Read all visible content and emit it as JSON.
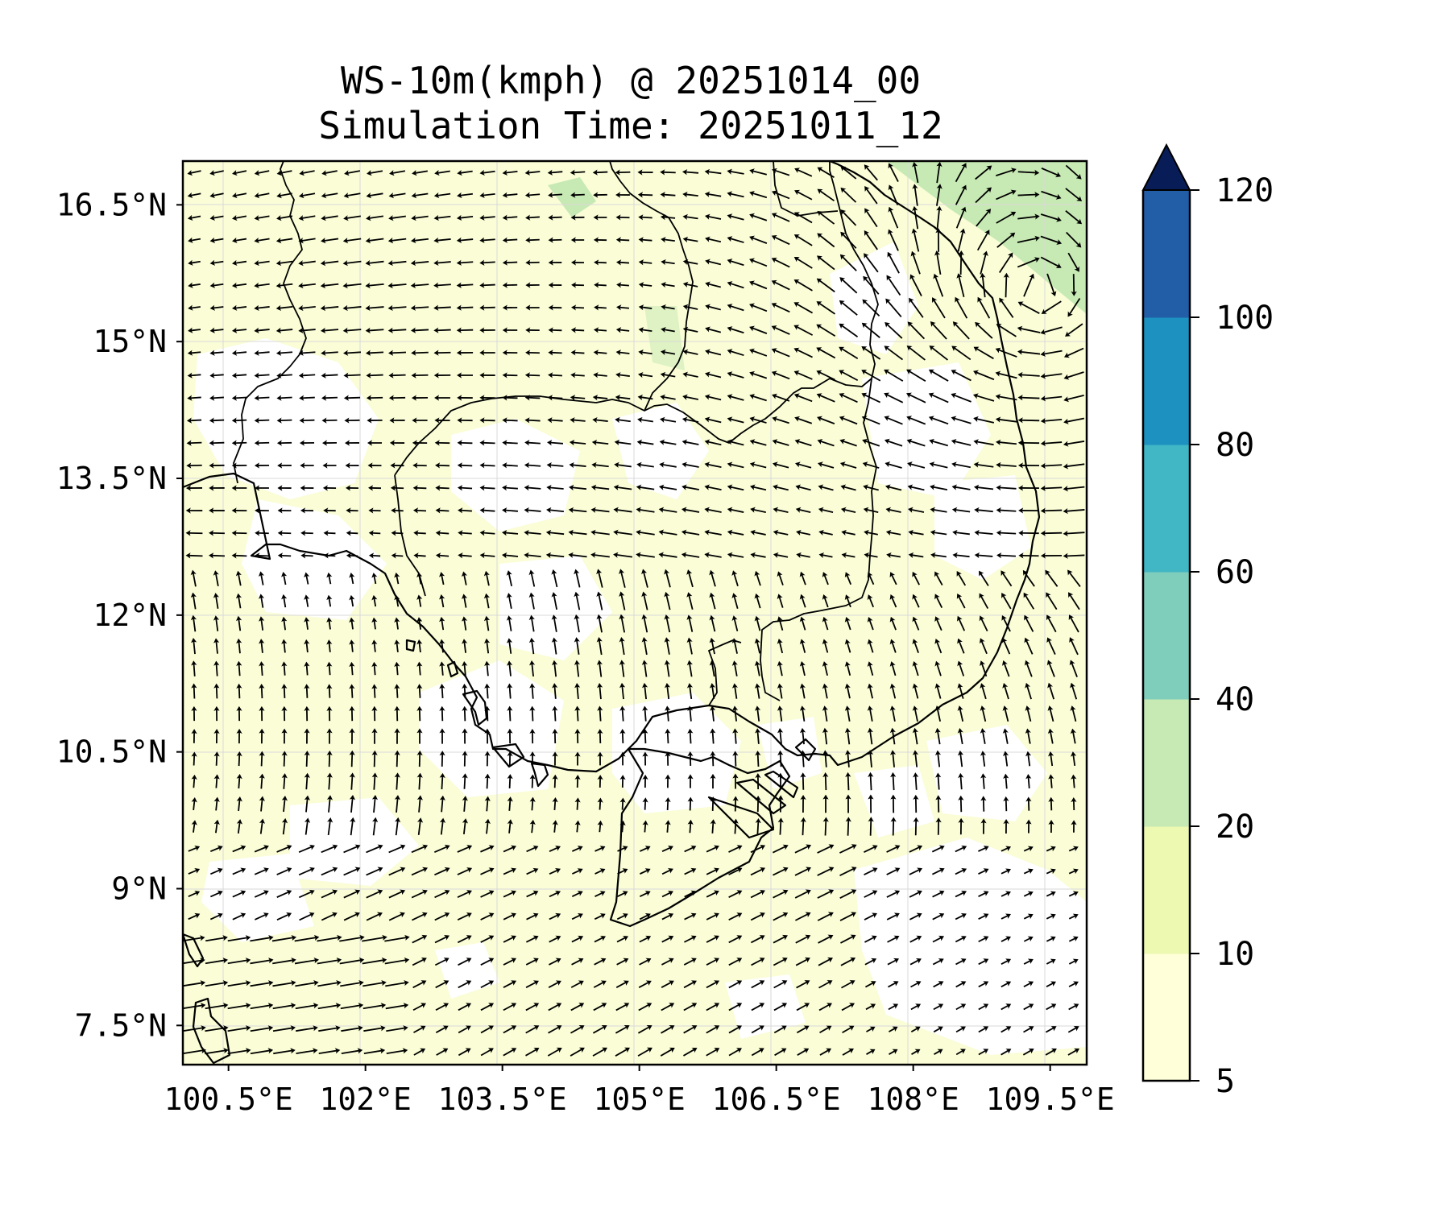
{
  "title": {
    "line1": "WS-10m(kmph) @ 20251014_00",
    "line2": "Simulation Time: 20251011_12"
  },
  "chart_data": {
    "type": "heatmap",
    "variable": "10 m wind speed with wind-direction vectors",
    "units": "kmph",
    "x_axis": {
      "ticks": [
        "100.5°E",
        "102°E",
        "103.5°E",
        "105°E",
        "106.5°E",
        "108°E",
        "109.5°E"
      ],
      "tick_values": [
        100.5,
        102,
        103.5,
        105,
        106.5,
        108,
        109.5
      ],
      "range": [
        100.0,
        109.9
      ]
    },
    "y_axis": {
      "ticks": [
        "7.5°N",
        "9°N",
        "10.5°N",
        "12°N",
        "13.5°N",
        "15°N",
        "16.5°N"
      ],
      "tick_values": [
        7.5,
        9,
        10.5,
        12,
        13.5,
        15,
        16.5
      ],
      "range": [
        7.07,
        16.98
      ]
    },
    "colorbar": {
      "levels": [
        5,
        10,
        20,
        40,
        60,
        80,
        100,
        120
      ],
      "labels": [
        "5",
        "10",
        "20",
        "40",
        "60",
        "80",
        "100",
        "120"
      ],
      "colors": [
        "#ffffd9",
        "#edf8b1",
        "#c7e9b4",
        "#7fcdbb",
        "#41b6c4",
        "#1d91c0",
        "#225ea8",
        "#0c2c84"
      ],
      "extend": "max",
      "extend_color": "#081d58"
    },
    "grid": true,
    "field_colors": {
      "5-10": "#fafdd6",
      "10-20": "#edf8b1",
      "20-40": "#c7e9b4"
    }
  }
}
